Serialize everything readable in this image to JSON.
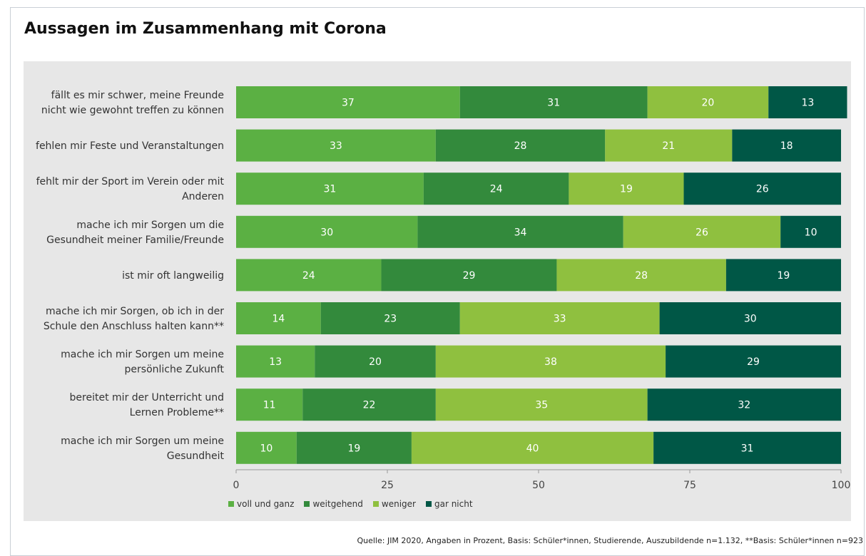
{
  "title": "Aussagen im Zusammenhang mit Corona",
  "source": "Quelle: JIM 2020,  Angaben in Prozent, Basis: Schüler*innen, Studierende, Auszubildende n=1.132, **Basis: Schüler*innen n=923",
  "colors": {
    "voll_und_ganz": "#5bb043",
    "weitgehend": "#338a3c",
    "weniger": "#8fc03f",
    "gar_nicht": "#005746",
    "plot_background": "#e7e7e7"
  },
  "chart_data": {
    "type": "bar",
    "orientation": "horizontal",
    "stacked": true,
    "title": "Aussagen im Zusammenhang mit Corona",
    "categories": [
      [
        "fällt es mir schwer, meine Freunde",
        "nicht wie gewohnt treffen zu können"
      ],
      [
        "fehlen mir Feste und Veranstaltungen"
      ],
      [
        "fehlt mir der Sport im Verein oder mit",
        "Anderen"
      ],
      [
        "mache ich mir Sorgen um die",
        "Gesundheit meiner Familie/Freunde"
      ],
      [
        "ist mir oft langweilig"
      ],
      [
        "mache ich mir Sorgen, ob ich in der",
        "Schule den Anschluss halten kann**"
      ],
      [
        "mache ich mir Sorgen um meine",
        "persönliche Zukunft"
      ],
      [
        "bereitet mir der Unterricht und",
        "Lernen Probleme**"
      ],
      [
        "mache ich mir Sorgen um meine",
        "Gesundheit"
      ]
    ],
    "series": [
      {
        "name": "voll und ganz",
        "color": "#5bb043",
        "values": [
          37,
          33,
          31,
          30,
          24,
          14,
          13,
          11,
          10
        ]
      },
      {
        "name": "weitgehend",
        "color": "#338a3c",
        "values": [
          31,
          28,
          24,
          34,
          29,
          23,
          20,
          22,
          19
        ]
      },
      {
        "name": "weniger",
        "color": "#8fc03f",
        "values": [
          20,
          21,
          19,
          26,
          28,
          33,
          38,
          35,
          40
        ]
      },
      {
        "name": "gar nicht",
        "color": "#005746",
        "values": [
          13,
          18,
          26,
          10,
          19,
          30,
          29,
          32,
          31
        ]
      }
    ],
    "xlim": [
      0,
      100
    ],
    "xticks": [
      "0",
      "25",
      "50",
      "75",
      "100"
    ],
    "grid": false,
    "legend_position": "bottom-left"
  }
}
